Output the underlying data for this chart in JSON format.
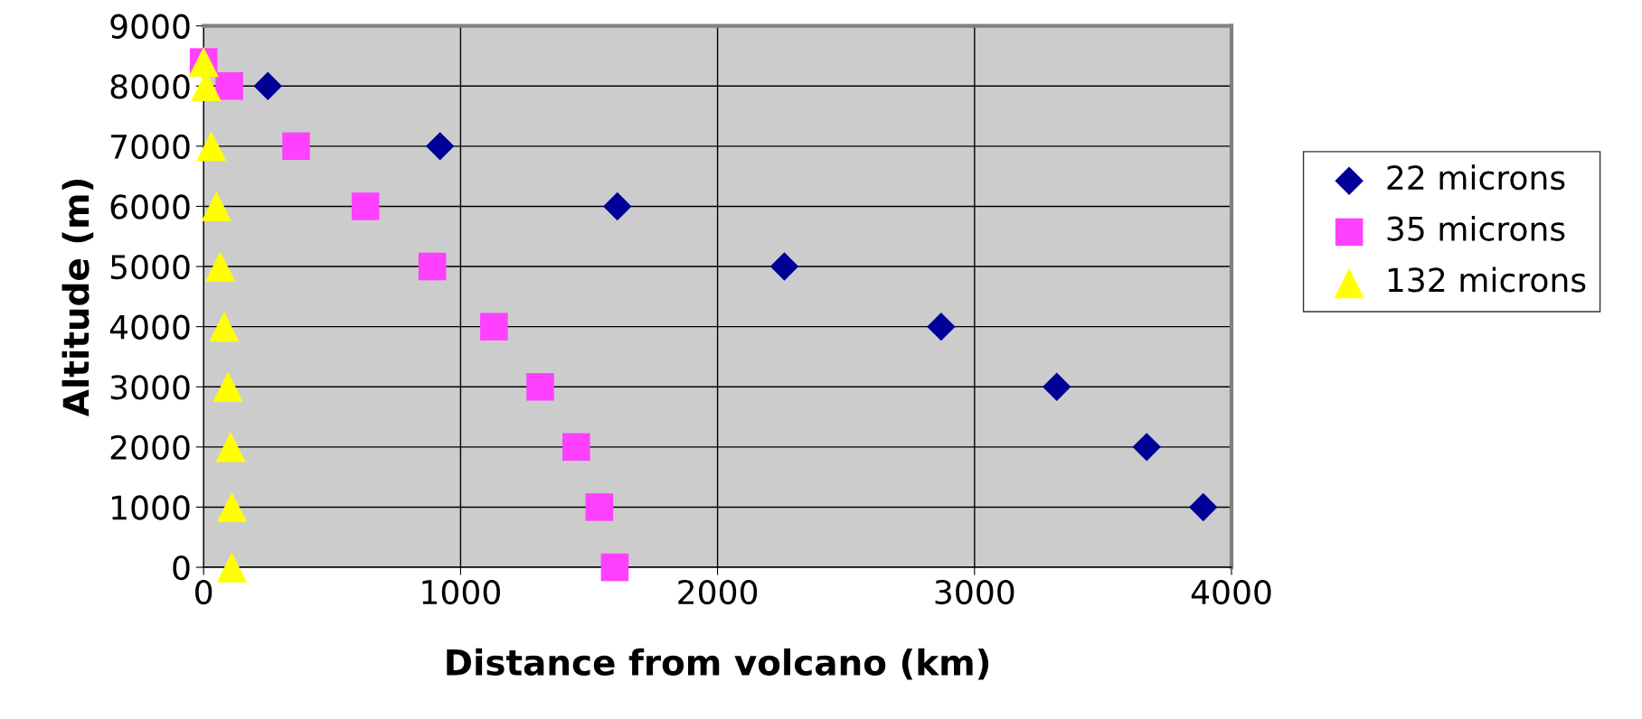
{
  "chart_data": {
    "type": "scatter",
    "xlabel": "Distance from volcano (km)",
    "ylabel": "Altitude (m)",
    "xlim": [
      0,
      4000
    ],
    "xticks": [
      0,
      1000,
      2000,
      3000,
      4000
    ],
    "ylim": [
      0,
      9000
    ],
    "yticks": [
      0,
      1000,
      2000,
      3000,
      4000,
      5000,
      6000,
      7000,
      8000,
      9000
    ],
    "grid": true,
    "legend": "right",
    "series": [
      {
        "name": "22 microns",
        "color": "#000099",
        "marker": "diamond",
        "x": [
          250,
          920,
          1610,
          2260,
          2870,
          3320,
          3670,
          3890
        ],
        "values": [
          8000,
          7000,
          6000,
          5000,
          4000,
          3000,
          2000,
          1000
        ]
      },
      {
        "name": "35 microns",
        "color": "#ff40ff",
        "marker": "square",
        "x": [
          0,
          100,
          360,
          630,
          890,
          1130,
          1310,
          1450,
          1540,
          1600
        ],
        "values": [
          8400,
          8000,
          7000,
          6000,
          5000,
          4000,
          3000,
          2000,
          1000,
          0
        ]
      },
      {
        "name": "132 microns",
        "color": "#ffff00",
        "marker": "triangle",
        "x": [
          0,
          10,
          30,
          50,
          65,
          80,
          95,
          105,
          110,
          110
        ],
        "values": [
          8400,
          8000,
          7000,
          6000,
          5000,
          4000,
          3000,
          2000,
          1000,
          0
        ]
      }
    ]
  }
}
